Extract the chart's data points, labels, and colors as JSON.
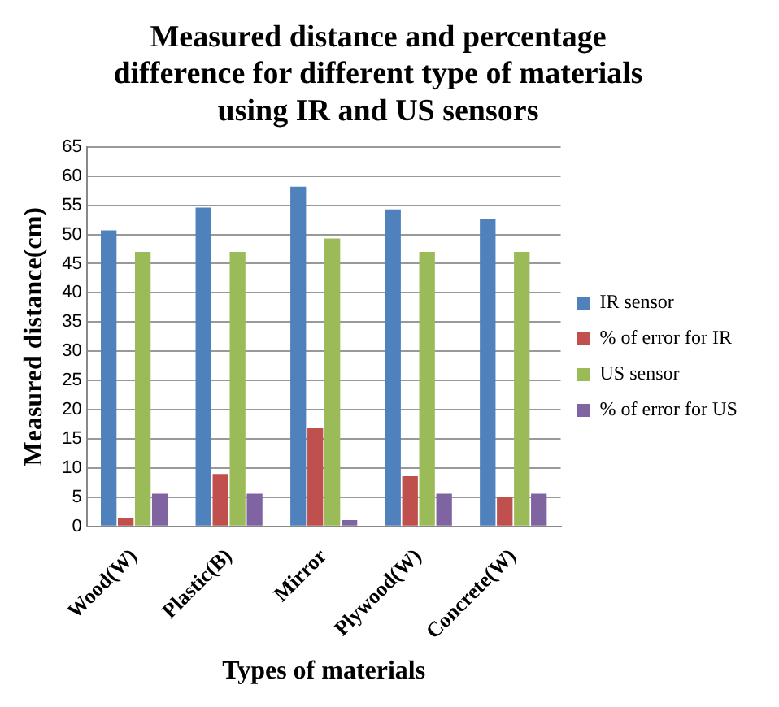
{
  "chart_data": {
    "type": "bar",
    "title": "Measured distance and percentage difference for different type of materials using IR and US sensors",
    "xlabel": "Types of materials",
    "ylabel": "Measured distance(cm)",
    "categories": [
      "Wood(W)",
      "Plastic(B)",
      "Mirror",
      "Plywood(W)",
      "Concrete(W)"
    ],
    "series": [
      {
        "name": "IR sensor",
        "color": "#4f81bd",
        "values": [
          50.7,
          54.6,
          58.2,
          54.3,
          52.7
        ]
      },
      {
        "name": "% of error for IR",
        "color": "#c0504d",
        "values": [
          1.4,
          9,
          16.8,
          8.6,
          5.1
        ]
      },
      {
        "name": "US sensor",
        "color": "#9bbb59",
        "values": [
          47,
          47,
          49.3,
          47,
          47
        ]
      },
      {
        "name": "% of error for US",
        "color": "#8064a2",
        "values": [
          5.6,
          5.6,
          1.1,
          5.6,
          5.6
        ]
      }
    ],
    "ylim": [
      0,
      65
    ],
    "yticks": [
      0,
      5,
      10,
      15,
      20,
      25,
      30,
      35,
      40,
      45,
      50,
      55,
      60,
      65
    ],
    "grid": "y",
    "legend": "right"
  }
}
